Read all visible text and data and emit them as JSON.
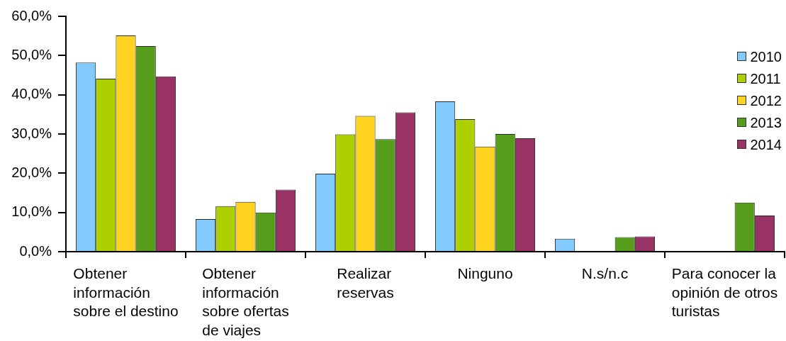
{
  "chart_data": {
    "type": "bar",
    "categories": [
      "Obtener información sobre el destino",
      "Obtener información sobre ofertas de viajes",
      "Realizar reservas",
      "Ninguno",
      "N.s/n.c",
      "Para conocer la opinión de otros turistas"
    ],
    "series": [
      {
        "name": "2010",
        "color": "#83caff",
        "values": [
          48.2,
          8.3,
          19.9,
          38.3,
          3.3,
          null
        ]
      },
      {
        "name": "2011",
        "color": "#aecf00",
        "values": [
          44.1,
          11.6,
          29.9,
          33.8,
          null,
          null
        ]
      },
      {
        "name": "2012",
        "color": "#ffd320",
        "values": [
          55.1,
          12.7,
          34.6,
          26.8,
          null,
          null
        ]
      },
      {
        "name": "2013",
        "color": "#579d1c",
        "values": [
          52.4,
          10.0,
          28.7,
          30.0,
          3.7,
          12.5
        ]
      },
      {
        "name": "2014",
        "color": "#993366",
        "values": [
          44.7,
          15.8,
          35.5,
          28.9,
          3.9,
          9.2
        ]
      }
    ],
    "ylim": [
      0,
      60
    ],
    "yticks": [
      {
        "value": 0,
        "label": "0,0%"
      },
      {
        "value": 10,
        "label": "10,0%"
      },
      {
        "value": 20,
        "label": "20,0%"
      },
      {
        "value": 30,
        "label": "30,0%"
      },
      {
        "value": 40,
        "label": "40,0%"
      },
      {
        "value": 50,
        "label": "50,0%"
      },
      {
        "value": 60,
        "label": "60,0%"
      }
    ],
    "grid": false,
    "legend": "top right"
  }
}
